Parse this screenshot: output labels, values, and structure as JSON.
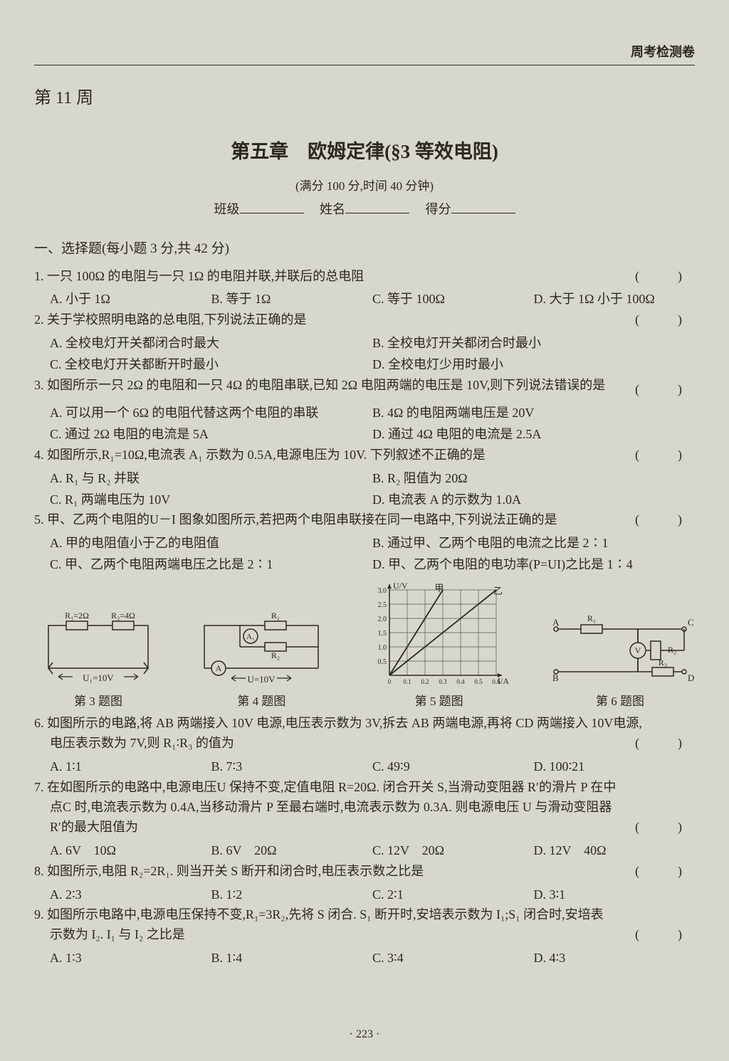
{
  "header": {
    "label": "周考检测卷"
  },
  "week": "第 11 周",
  "title": "第五章　欧姆定律(§3 等效电阻)",
  "meta": {
    "line1": "(满分 100 分,时间 40 分钟)",
    "class_label": "班级",
    "name_label": "姓名",
    "score_label": "得分"
  },
  "section1": "一、选择题(每小题 3 分,共 42 分)",
  "q1": {
    "text": "1. 一只 100Ω 的电阻与一只 1Ω 的电阻并联,并联后的总电阻",
    "A": "A. 小于 1Ω",
    "B": "B. 等于 1Ω",
    "C": "C. 等于 100Ω",
    "D": "D. 大于 1Ω 小于 100Ω"
  },
  "q2": {
    "text": "2. 关于学校照明电路的总电阻,下列说法正确的是",
    "A": "A. 全校电灯开关都闭合时最大",
    "B": "B. 全校电灯开关都闭合时最小",
    "C": "C. 全校电灯开关都断开时最小",
    "D": "D. 全校电灯少用时最小"
  },
  "q3": {
    "text": "3. 如图所示一只 2Ω 的电阻和一只 4Ω 的电阻串联,已知 2Ω 电阻两端的电压是 10V,则下列说法错误的是",
    "A": "A. 可以用一个 6Ω 的电阻代替这两个电阻的串联",
    "B": "B. 4Ω 的电阻两端电压是 20V",
    "C": "C. 通过 2Ω 电阻的电流是 5A",
    "D": "D. 通过 4Ω 电阻的电流是 2.5A"
  },
  "q4": {
    "text": "4. 如图所示,R₁=10Ω,电流表 A₁ 示数为 0.5A,电源电压为 10V. 下列叙述不正确的是",
    "A": "A. R₁ 与 R₂ 并联",
    "B": "B. R₂ 阻值为 20Ω",
    "C": "C. R₁ 两端电压为 10V",
    "D": "D. 电流表 A 的示数为 1.0A"
  },
  "q5": {
    "text": "5. 甲、乙两个电阻的U－I 图象如图所示,若把两个电阻串联接在同一电路中,下列说法正确的是",
    "A": "A. 甲的电阻值小于乙的电阻值",
    "B": "B. 通过甲、乙两个电阻的电流之比是 2∶1",
    "C": "C. 甲、乙两个电阻两端电压之比是 2∶1",
    "D": "D. 甲、乙两个电阻的电功率(P=UI)之比是 1∶4"
  },
  "q6": {
    "text": "6. 如图所示的电路,将 AB 两端接入 10V 电源,电压表示数为 3V,拆去 AB 两端电源,再将 CD 两端接入 10V电源,电压表示数为 7V,则 R₁∶R₃ 的值为",
    "A": "A. 1∶1",
    "B": "B. 7∶3",
    "C": "C. 49∶9",
    "D": "D. 100∶21"
  },
  "q7": {
    "text1": "7. 在如图所示的电路中,电源电压U 保持不变,定值电阻 R=20Ω. 闭合开关 S,当滑动变阻器 R′的滑片 P 在中",
    "text2": "点C 时,电流表示数为 0.4A,当移动滑片 P 至最右端时,电流表示数为 0.3A. 则电源电压 U 与滑动变阻器",
    "text3": "R′的最大阻值为",
    "A": "A. 6V　10Ω",
    "B": "B. 6V　20Ω",
    "C": "C. 12V　20Ω",
    "D": "D. 12V　40Ω"
  },
  "q8": {
    "text": "8. 如图所示,电阻 R₂=2R₁. 则当开关 S 断开和闭合时,电压表示数之比是",
    "A": "A. 2∶3",
    "B": "B. 1∶2",
    "C": "C. 2∶1",
    "D": "D. 3∶1"
  },
  "q9": {
    "text1": "9. 如图所示电路中,电源电压保持不变,R₁=3R₂,先将 S 闭合. S₁ 断开时,安培表示数为 I₁;S₁ 闭合时,安培表",
    "text2": "示数为 I₂. I₁ 与 I₂ 之比是",
    "A": "A. 1∶3",
    "B": "B. 1∶4",
    "C": "C. 3∶4",
    "D": "D. 4∶3"
  },
  "figcaps": {
    "f3": "第 3 题图",
    "f4": "第 4 题图",
    "f5": "第 5 题图",
    "f6": "第 6 题图"
  },
  "fig5": {
    "ylabel": "U/V",
    "xlabel": "I/A",
    "yticks": [
      "0.5",
      "1.0",
      "1.5",
      "2.0",
      "2.5",
      "3.0"
    ],
    "xticks": [
      "0",
      "0.1",
      "0.2",
      "0.3",
      "0.4",
      "0.5",
      "0.6"
    ],
    "line_jia": "甲",
    "line_yi": "乙",
    "grid_color": "#555",
    "bg": "#d8d7cd"
  },
  "fig3": {
    "R1": "R₁=2Ω",
    "R2": "R₂=4Ω",
    "U": "U₁=10V"
  },
  "fig4": {
    "R1": "R₁",
    "R2": "R₂",
    "A1": "A₁",
    "A": "A",
    "U": "U=10V"
  },
  "fig6": {
    "A": "A",
    "B": "B",
    "C": "C",
    "D": "D",
    "R1": "R₁",
    "R2": "R₂",
    "R3": "R₃",
    "V": "V"
  },
  "pagenum": "· 223 ·"
}
